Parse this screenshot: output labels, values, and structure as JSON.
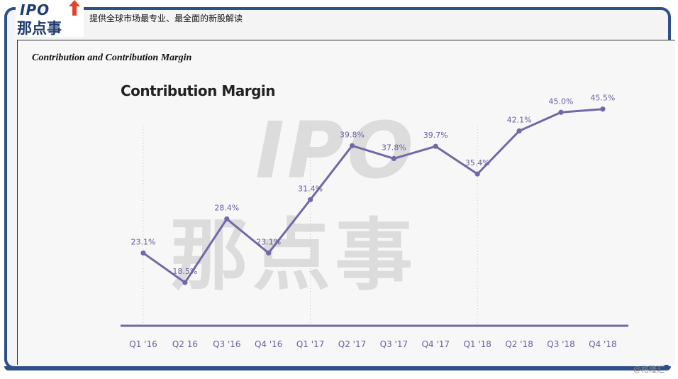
{
  "header": {
    "logo_text": "IPO那点事",
    "tagline": "提供全球市场最专业、最全面的新股解读"
  },
  "doc": {
    "title": "Contribution and Contribution Margin"
  },
  "watermark": {
    "text_ipo": "IPO",
    "text_cn": "那点事"
  },
  "footer": {
    "credit": "@格隆汇"
  },
  "colors": {
    "frame": "#2d4f8a",
    "line": "#7467a8",
    "axis": "#7467a8",
    "label": "#6b5f9e"
  },
  "chart_data": {
    "type": "line",
    "title": "Contribution Margin",
    "categories": [
      "Q1 '16",
      "Q2 16",
      "Q3 '16",
      "Q4 '16",
      "Q1 '17",
      "Q2 '17",
      "Q3 '17",
      "Q4 '17",
      "Q1 '18",
      "Q2 '18",
      "Q3 '18",
      "Q4 '18"
    ],
    "values": [
      23.1,
      18.5,
      28.4,
      23.1,
      31.4,
      39.8,
      37.8,
      39.7,
      35.4,
      42.1,
      45.0,
      45.5
    ],
    "labels": [
      "23.1%",
      "18.5%",
      "28.4%",
      "23.1%",
      "31.4%",
      "39.8%",
      "37.8%",
      "39.7%",
      "35.4%",
      "42.1%",
      "45.0%",
      "45.5%"
    ],
    "xlabel": "",
    "ylabel": "",
    "grid": "dotted vertical year separators"
  }
}
